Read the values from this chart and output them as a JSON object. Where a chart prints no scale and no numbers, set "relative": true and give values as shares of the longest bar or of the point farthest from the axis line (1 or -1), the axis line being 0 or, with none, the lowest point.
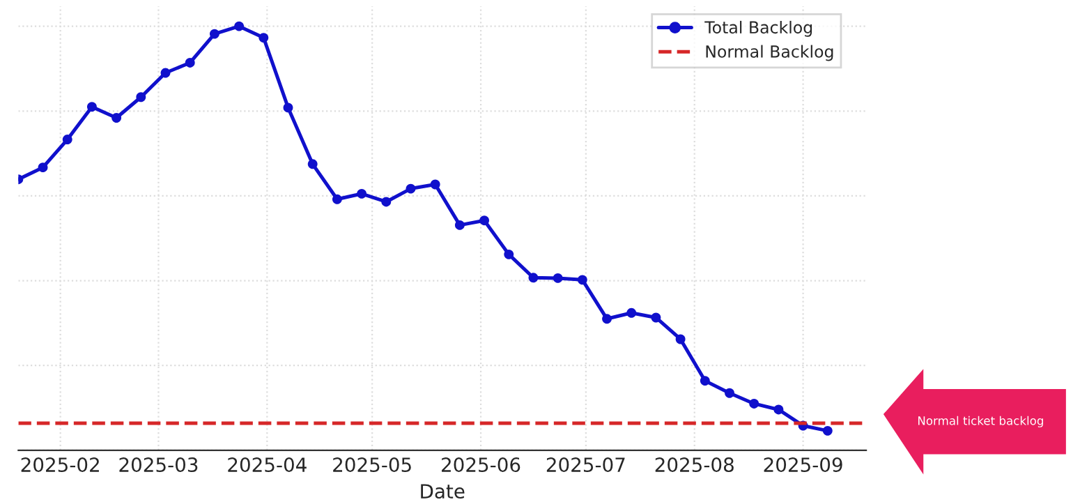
{
  "chart_data": {
    "type": "line",
    "xlabel": "Date",
    "relative": true,
    "x": [
      "2025-01-20",
      "2025-01-27",
      "2025-02-03",
      "2025-02-10",
      "2025-02-17",
      "2025-02-24",
      "2025-03-03",
      "2025-03-10",
      "2025-03-17",
      "2025-03-24",
      "2025-03-31",
      "2025-04-07",
      "2025-04-14",
      "2025-04-21",
      "2025-04-28",
      "2025-05-05",
      "2025-05-12",
      "2025-05-19",
      "2025-05-26",
      "2025-06-02",
      "2025-06-09",
      "2025-06-16",
      "2025-06-23",
      "2025-06-30",
      "2025-07-07",
      "2025-07-14",
      "2025-07-21",
      "2025-07-28",
      "2025-08-04",
      "2025-08-11",
      "2025-08-18",
      "2025-08-25",
      "2025-09-01",
      "2025-09-08"
    ],
    "series": [
      {
        "name": "Total Backlog",
        "color": "#1010cc",
        "values": [
          0.639,
          0.667,
          0.733,
          0.81,
          0.784,
          0.833,
          0.89,
          0.914,
          0.982,
          1,
          0.973,
          0.808,
          0.675,
          0.592,
          0.605,
          0.586,
          0.617,
          0.627,
          0.531,
          0.542,
          0.462,
          0.407,
          0.406,
          0.402,
          0.31,
          0.324,
          0.313,
          0.262,
          0.164,
          0.135,
          0.11,
          0.096,
          0.058,
          0.046
        ]
      }
    ],
    "xlim": [
      "2025-01-20",
      "2025-09-19"
    ],
    "xticks": [
      "2025-02",
      "2025-03",
      "2025-04",
      "2025-05",
      "2025-06",
      "2025-07",
      "2025-08",
      "2025-09"
    ],
    "ref_lines": [
      {
        "axis": "y",
        "value": 0.064,
        "label": "Normal Backlog",
        "color": "#d62728",
        "line_style": "dashed"
      }
    ],
    "annotations": [
      "Normal ticket backlog"
    ],
    "grid": true,
    "legend": "top right",
    "marker": "circle",
    "line_style": "solid",
    "tick_labels": "x"
  }
}
